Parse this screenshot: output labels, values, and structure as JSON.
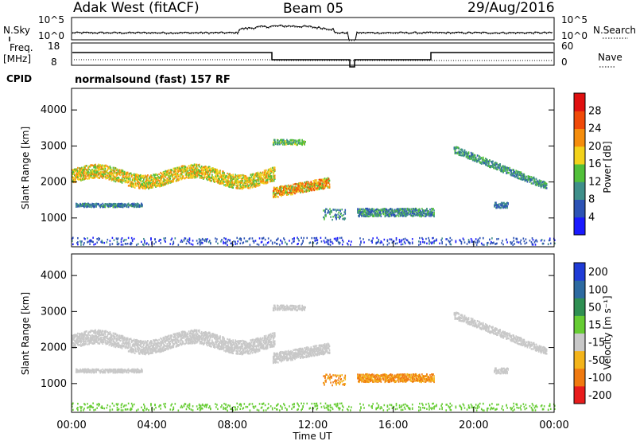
{
  "header": {
    "station": "Adak West (fitACF)",
    "beam": "Beam 05",
    "date": "29/Aug/2016"
  },
  "side_labels": {
    "nsky": "N.Sky",
    "nsearch": "N.Search",
    "freq": "Freq.",
    "freq_unit": "[MHz]",
    "nave": "Nave",
    "cpid": "CPID",
    "cpid_value": "normalsound (fast) 157 RF"
  },
  "noise_axis": {
    "top_left": "10^5",
    "bottom_left": "10^0",
    "top_right": "10^5",
    "bottom_right": "10^0"
  },
  "freq_axis": {
    "top_left": "18",
    "bottom_left": "8",
    "top_right": "60",
    "bottom_right": "0"
  },
  "chart_data": [
    {
      "type": "heatmap",
      "name": "power",
      "ylabel": "Slant Range [km]",
      "yticks": [
        "1000",
        "2000",
        "3000",
        "4000"
      ],
      "ylim": [
        200,
        4600
      ],
      "colorbar_label": "Power [dB]",
      "colorbar_ticks": [
        "4",
        "8",
        "12",
        "16",
        "20",
        "24",
        "28"
      ],
      "colorbar_range": [
        0,
        30
      ],
      "colors": [
        "#1a1aff",
        "#2d53b5",
        "#3f8f8a",
        "#52c03a",
        "#f3d21b",
        "#f58d0d",
        "#f04a08",
        "#e01010"
      ]
    },
    {
      "type": "heatmap",
      "name": "velocity",
      "ylabel": "Slant Range [km]",
      "yticks": [
        "1000",
        "2000",
        "3000",
        "4000"
      ],
      "ylim": [
        200,
        4600
      ],
      "colorbar_label": "Velocity [m s⁻¹]",
      "colorbar_ticks": [
        "200",
        "100",
        "50",
        "15",
        "-15",
        "-50",
        "-100",
        "-200"
      ],
      "colors": [
        "#1f3bd6",
        "#2d6aa0",
        "#2f8f52",
        "#66cc33",
        "#c8c8c8",
        "#f3b41b",
        "#f07a10",
        "#e81c1c",
        "#e01010"
      ]
    }
  ],
  "time_axis": {
    "ticks": [
      "00:00",
      "04:00",
      "08:00",
      "12:00",
      "16:00",
      "20:00",
      "00:00"
    ],
    "label": "Time UT"
  }
}
